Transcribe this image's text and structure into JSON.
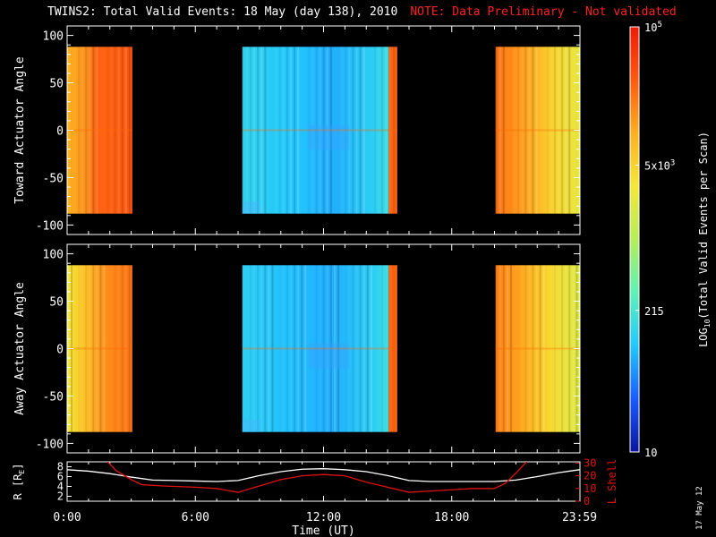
{
  "title": {
    "main": "TWINS2: Total Valid Events: 18 May (day 138), 2010",
    "note": "NOTE: Data Preliminary - Not validated"
  },
  "stamp": "17 May 12",
  "colorbar": {
    "label": "LOG10(Total Valid Events per Scan)",
    "label_parts": {
      "pre": "LOG",
      "sub": "10",
      "post": "(Total Valid Events per Scan)"
    },
    "scale": "log",
    "range": [
      10,
      100000
    ],
    "ticks": [
      {
        "value": 10,
        "text": "10"
      },
      {
        "value": 215,
        "text": "215"
      },
      {
        "value": 5000,
        "text": "5x10",
        "sup": "3"
      },
      {
        "value": 100000,
        "text": "10",
        "sup": "5"
      }
    ],
    "colors": [
      "#0a14a0",
      "#1a5cff",
      "#22c8ff",
      "#5ff2b8",
      "#b5ee5a",
      "#f5e838",
      "#ffb020",
      "#ff5a10",
      "#ee1a08"
    ]
  },
  "chart_data": [
    {
      "type": "heatmap",
      "name": "toward",
      "ylabel": "Toward Actuator Angle",
      "ylim": [
        -110,
        110
      ],
      "yticks": [
        100,
        50,
        0,
        -50,
        -100
      ],
      "xlim": [
        0,
        24
      ],
      "data_ylim": [
        -88,
        88
      ],
      "blocks": [
        {
          "start_hr": 0.0,
          "end_hr": 3.05,
          "level": "high",
          "stops": [
            [
              0,
              0.74
            ],
            [
              0.3,
              0.8
            ],
            [
              0.45,
              0.86
            ],
            [
              1,
              0.88
            ]
          ]
        },
        {
          "start_hr": 8.2,
          "end_hr": 15.05,
          "level": "low",
          "stops": [
            [
              0,
              0.28
            ],
            [
              0.35,
              0.25
            ],
            [
              0.6,
              0.22
            ],
            [
              0.9,
              0.27
            ],
            [
              0.98,
              0.3
            ]
          ]
        },
        {
          "start_hr": 15.05,
          "end_hr": 15.45,
          "level": "high",
          "stops": [
            [
              0,
              0.86
            ],
            [
              1,
              0.86
            ]
          ]
        },
        {
          "start_hr": 20.05,
          "end_hr": 23.98,
          "level": "high",
          "stops": [
            [
              0,
              0.84
            ],
            [
              0.4,
              0.76
            ],
            [
              0.65,
              0.68
            ],
            [
              1,
              0.6
            ]
          ]
        }
      ]
    },
    {
      "type": "heatmap",
      "name": "away",
      "ylabel": "Away Actuator Angle",
      "ylim": [
        -110,
        110
      ],
      "yticks": [
        100,
        50,
        0,
        -50,
        -100
      ],
      "xlim": [
        0,
        24
      ],
      "data_ylim": [
        -88,
        88
      ],
      "blocks": [
        {
          "start_hr": 0.0,
          "end_hr": 3.05,
          "level": "high",
          "stops": [
            [
              0,
              0.62
            ],
            [
              0.3,
              0.72
            ],
            [
              0.6,
              0.8
            ],
            [
              1,
              0.84
            ]
          ]
        },
        {
          "start_hr": 8.2,
          "end_hr": 15.05,
          "level": "low",
          "stops": [
            [
              0,
              0.27
            ],
            [
              0.35,
              0.24
            ],
            [
              0.6,
              0.22
            ],
            [
              0.9,
              0.27
            ],
            [
              0.98,
              0.3
            ]
          ]
        },
        {
          "start_hr": 15.05,
          "end_hr": 15.45,
          "level": "high",
          "stops": [
            [
              0,
              0.86
            ],
            [
              1,
              0.86
            ]
          ]
        },
        {
          "start_hr": 20.05,
          "end_hr": 23.98,
          "level": "high",
          "stops": [
            [
              0,
              0.82
            ],
            [
              0.4,
              0.74
            ],
            [
              0.65,
              0.66
            ],
            [
              1,
              0.58
            ]
          ]
        }
      ]
    },
    {
      "type": "line",
      "name": "orbit",
      "ylabel": "R [RE]",
      "ylabel_parts": {
        "pre": "R [R",
        "sub": "E",
        "post": "]"
      },
      "y2label": "L Shell",
      "ylim": [
        1,
        9
      ],
      "yticks": [
        2,
        4,
        6,
        8
      ],
      "y2lim": [
        0,
        31
      ],
      "y2ticks": [
        0,
        10,
        20,
        30
      ],
      "xlim": [
        0,
        24
      ],
      "xticks": [
        0,
        6,
        12,
        18,
        23.98
      ],
      "xticklabels": [
        "0:00",
        "6:00",
        "12:00",
        "18:00",
        "23:59"
      ],
      "xlabel": "Time (UT)",
      "series": [
        {
          "axis": "left",
          "color": "#ffffff",
          "x": [
            0,
            1,
            2,
            3,
            4,
            5,
            6,
            7,
            8,
            9,
            10,
            11,
            12,
            13,
            14,
            15,
            16,
            17,
            18,
            19,
            20,
            21,
            22,
            23,
            23.98
          ],
          "y": [
            7.4,
            7.1,
            6.6,
            5.9,
            5.3,
            5.2,
            5.1,
            5.0,
            5.2,
            6.2,
            7.0,
            7.5,
            7.6,
            7.4,
            7.0,
            6.2,
            5.2,
            5.0,
            5.0,
            5.0,
            5.0,
            5.3,
            6.0,
            6.8,
            7.4
          ]
        },
        {
          "axis": "right",
          "color": "#e01010",
          "x": [
            1.9,
            2.3,
            3.0,
            3.5,
            4.5,
            6.0,
            7.0,
            8.0,
            9.0,
            10.0,
            11.0,
            12.0,
            13.0,
            14.0,
            15.0,
            16.0,
            17.0,
            18.0,
            19.0,
            20.0,
            20.5,
            21.0,
            21.5
          ],
          "y": [
            31,
            24,
            17,
            13,
            12,
            11,
            10,
            7,
            12,
            17,
            20,
            21,
            20,
            15,
            11,
            7,
            8,
            9,
            10,
            10,
            14,
            22,
            31
          ]
        }
      ]
    }
  ]
}
